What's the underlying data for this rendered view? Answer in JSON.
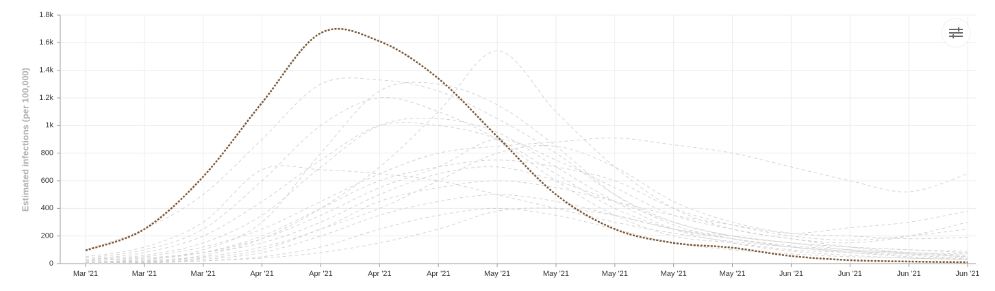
{
  "chart_data": {
    "type": "line",
    "y_label": "Estimated infections (per 100,000)",
    "categories": [
      "Mar '21",
      "Mar '21",
      "Mar '21",
      "Apr '21",
      "Apr '21",
      "Apr '21",
      "Apr '21",
      "May '21",
      "May '21",
      "May '21",
      "May '21",
      "May '21",
      "Jun '21",
      "Jun '21",
      "Jun '21",
      "Jun '21"
    ],
    "ylim": [
      0,
      1800
    ],
    "yticks": [
      0,
      200,
      400,
      600,
      800,
      {
        "value": 1000,
        "label": "1k"
      },
      {
        "value": 1200,
        "label": "1.2k"
      },
      {
        "value": 1400,
        "label": "1.4k"
      },
      {
        "value": 1600,
        "label": "1.6k"
      },
      {
        "value": 1800,
        "label": "1.8k"
      }
    ],
    "grid": true,
    "series": [
      {
        "color": "#d2d2d2",
        "dash": "dashed",
        "values": [
          30,
          60,
          150,
          350,
          700,
          1000,
          1050,
          950,
          700,
          450,
          250,
          150,
          90,
          60,
          40,
          30
        ]
      },
      {
        "color": "#d2d2d2",
        "dash": "dashed",
        "values": [
          10,
          30,
          100,
          300,
          800,
          1250,
          1300,
          1150,
          850,
          500,
          280,
          180,
          120,
          80,
          50,
          35
        ]
      },
      {
        "color": "#d2d2d2",
        "dash": "dashed",
        "values": [
          100,
          250,
          500,
          900,
          1300,
          1330,
          1250,
          1050,
          800,
          500,
          300,
          200,
          150,
          100,
          80,
          60
        ]
      },
      {
        "color": "#d2d2d2",
        "dash": "dashed",
        "values": [
          5,
          20,
          60,
          180,
          400,
          700,
          1100,
          1540,
          1100,
          700,
          400,
          250,
          180,
          120,
          80,
          60
        ]
      },
      {
        "color": "#d2d2d2",
        "dash": "dashed",
        "values": [
          20,
          50,
          120,
          250,
          450,
          650,
          800,
          850,
          880,
          910,
          860,
          800,
          700,
          600,
          520,
          650
        ]
      },
      {
        "color": "#d2d2d2",
        "dash": "dashed",
        "values": [
          10,
          30,
          80,
          200,
          400,
          600,
          700,
          750,
          700,
          600,
          400,
          280,
          200,
          170,
          200,
          250
        ]
      },
      {
        "color": "#d2d2d2",
        "dash": "dashed",
        "values": [
          5,
          15,
          40,
          100,
          250,
          400,
          600,
          800,
          850,
          700,
          450,
          300,
          220,
          200,
          180,
          190
        ]
      },
      {
        "color": "#d2d2d2",
        "dash": "dashed",
        "values": [
          30,
          80,
          200,
          450,
          750,
          1000,
          1000,
          900,
          650,
          400,
          250,
          180,
          120,
          90,
          70,
          50
        ]
      },
      {
        "color": "#d2d2d2",
        "dash": "dashed",
        "values": [
          5,
          10,
          30,
          80,
          200,
          350,
          450,
          500,
          450,
          350,
          250,
          180,
          130,
          100,
          80,
          70
        ]
      },
      {
        "color": "#d2d2d2",
        "dash": "dashed",
        "values": [
          20,
          40,
          80,
          150,
          300,
          500,
          650,
          700,
          600,
          450,
          300,
          200,
          150,
          120,
          100,
          90
        ]
      },
      {
        "color": "#d2d2d2",
        "dash": "dashed",
        "values": [
          0,
          5,
          20,
          50,
          120,
          250,
          350,
          400,
          350,
          250,
          150,
          100,
          70,
          50,
          40,
          30
        ]
      },
      {
        "color": "#d2d2d2",
        "dash": "dashed",
        "values": [
          40,
          100,
          250,
          600,
          1000,
          1200,
          1100,
          900,
          600,
          350,
          200,
          150,
          100,
          80,
          60,
          40
        ]
      },
      {
        "color": "#d2d2d2",
        "dash": "dashed",
        "values": [
          10,
          20,
          50,
          120,
          250,
          450,
          550,
          600,
          550,
          450,
          350,
          280,
          220,
          260,
          300,
          380
        ]
      },
      {
        "color": "#d2d2d2",
        "dash": "dashed",
        "values": [
          5,
          10,
          20,
          40,
          80,
          150,
          250,
          380,
          400,
          350,
          250,
          200,
          150,
          120,
          100,
          80
        ]
      },
      {
        "color": "#d2d2d2",
        "dash": "dashed",
        "values": [
          50,
          120,
          300,
          680,
          680,
          650,
          600,
          500,
          400,
          300,
          220,
          160,
          120,
          90,
          70,
          50
        ]
      },
      {
        "color": "#d2d2d2",
        "dash": "dashed",
        "values": [
          10,
          30,
          80,
          180,
          350,
          550,
          700,
          900,
          750,
          550,
          350,
          250,
          180,
          150,
          200,
          300
        ]
      },
      {
        "color": "#7a5535",
        "dash": "dotted",
        "values": [
          95,
          250,
          630,
          1165,
          1670,
          1610,
          1340,
          920,
          500,
          250,
          150,
          115,
          55,
          25,
          15,
          10
        ]
      }
    ]
  }
}
